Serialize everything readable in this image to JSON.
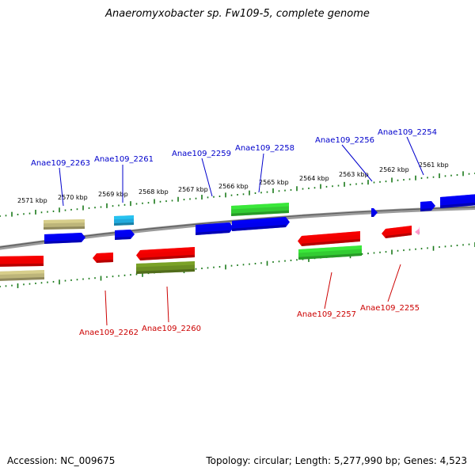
{
  "title": "Anaeromyxobacter sp. Fw109-5, complete genome",
  "footer": {
    "accession": "Accession: NC_009675",
    "topology": "Topology: circular; Length: 5,277,990 bp; Genes: 4,523"
  },
  "colors": {
    "backbone": "#808080",
    "tick": "#1a7a1a",
    "label_top": "#0000cc",
    "label_bottom": "#cc0000",
    "gene_blue": "#0000ee",
    "gene_red": "#ee0000",
    "gene_green": "#33cc33",
    "gene_khaki": "#bdb57a",
    "gene_olive": "#6b8e23",
    "gene_cyan": "#22aadd",
    "gene_pink": "#ff99cc"
  },
  "kbp_labels": [
    "2571 kbp",
    "2570 kbp",
    "2569 kbp",
    "2568 kbp",
    "2567 kbp",
    "2566 kbp",
    "2565 kbp",
    "2564 kbp",
    "2563 kbp",
    "2562 kbp",
    "2561 kbp"
  ],
  "top_gene_labels": [
    "Anae109_2263",
    "Anae109_2261",
    "Anae109_2259",
    "Anae109_2258",
    "Anae109_2256",
    "Anae109_2254"
  ],
  "bottom_gene_labels": [
    "Anae109_2262",
    "Anae109_2260",
    "Anae109_2257",
    "Anae109_2255"
  ]
}
